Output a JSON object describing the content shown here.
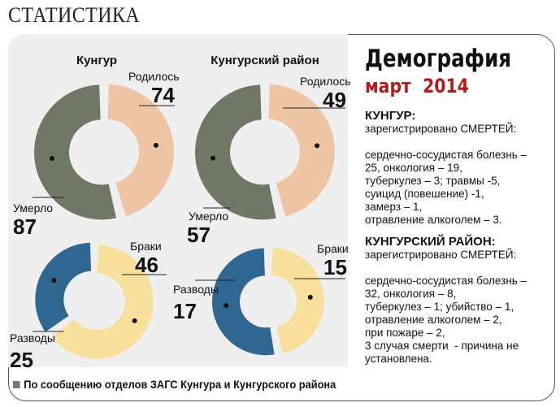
{
  "header": {
    "title": "СТАТИСТИКА"
  },
  "info": {
    "title": "Демография",
    "subtitle_month": "март",
    "subtitle_year": "2014",
    "sections": [
      {
        "heading": "КУНГУР:",
        "intro": "зарегистрировано СМЕРТЕЙ:",
        "body": "сердечно-сосудистая болезнь –\n25, онкология – 19,\nтуберкулез – 3; травмы -5,\nсуицид (повешение) -1,\nзамерз – 1,\nотравление алкоголем – 3."
      },
      {
        "heading": "КУНГУРСКИЙ РАЙОН:",
        "intro": "зарегистрировано СМЕРТЕЙ:",
        "body": "сердечно-сосудистая болезнь –\n32, онкология – 8,\nтуберкулез – 1; убийство – 1,\nотравление алкоголем – 2,\nпри пожаре – 2,\n3 случая смерти  - причина не\nустановлена."
      }
    ]
  },
  "footer": {
    "text": "По сообщению отделов ЗАГС Кунгура и Кунгурского района"
  },
  "colors": {
    "born": "#efc4a4",
    "died": "#6f7765",
    "marriages": "#f8df9c",
    "divorces": "#2f6790",
    "accent": "#b31b1b"
  },
  "chart_data": [
    {
      "type": "pie",
      "variant": "donut",
      "title": "Кунгур",
      "series": [
        {
          "name": "Родилось",
          "value": 74
        },
        {
          "name": "Умерло",
          "value": 87
        }
      ]
    },
    {
      "type": "pie",
      "variant": "donut",
      "title": "Кунгурский район",
      "series": [
        {
          "name": "Родилось",
          "value": 49
        },
        {
          "name": "Умерло",
          "value": 57
        }
      ]
    },
    {
      "type": "pie",
      "variant": "donut",
      "title": "",
      "series": [
        {
          "name": "Браки",
          "value": 46
        },
        {
          "name": "Разводы",
          "value": 25
        }
      ]
    },
    {
      "type": "pie",
      "variant": "donut",
      "title": "",
      "series": [
        {
          "name": "Браки",
          "value": 15
        },
        {
          "name": "Разводы",
          "value": 17
        }
      ]
    }
  ]
}
